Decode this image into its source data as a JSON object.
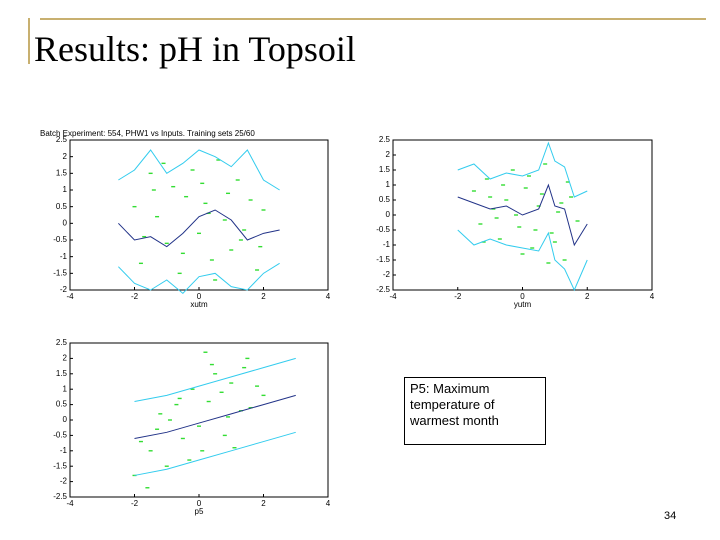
{
  "slide": {
    "title": "Results: pH in Topsoil",
    "note": "P5: Maximum temperature of warmest month",
    "page": "34"
  },
  "chart_data": [
    {
      "type": "scatter",
      "title": "Batch Experiment: 554, PHW1 vs Inputs. Training sets 25/60",
      "xlabel": "xutm",
      "xlim": [
        -4,
        4
      ],
      "xticks": [
        -4,
        -2,
        0,
        2,
        4
      ],
      "ylim": [
        -2,
        2.5
      ],
      "yticks": [
        -2,
        -1.5,
        -1,
        -0.5,
        0,
        0.5,
        1,
        1.5,
        2,
        2.5
      ],
      "series": [
        {
          "mode": "points",
          "color": "#33dd33",
          "x": [
            -2.0,
            -1.8,
            -1.5,
            -1.3,
            -1.0,
            -0.8,
            -0.6,
            -0.4,
            -0.2,
            0,
            0.2,
            0.4,
            0.6,
            0.8,
            1.0,
            1.2,
            1.4,
            1.6,
            1.8,
            2.0,
            -1.7,
            -1.1,
            -0.5,
            0.1,
            0.5,
            0.9,
            1.3,
            1.9,
            -1.4,
            0.3
          ],
          "values": [
            0.5,
            -1.2,
            1.5,
            0.2,
            -0.6,
            1.1,
            -1.5,
            0.8,
            1.6,
            -0.3,
            0.6,
            -1.1,
            1.9,
            0.1,
            -0.8,
            1.3,
            -0.2,
            0.7,
            -1.4,
            0.4,
            -0.4,
            1.8,
            -0.9,
            1.2,
            -1.7,
            0.9,
            -0.5,
            -0.7,
            1.0,
            0.3
          ]
        },
        {
          "mode": "line",
          "color": "#33ccee",
          "x": [
            -2.5,
            -2,
            -1.5,
            -1,
            -0.5,
            0,
            0.5,
            1,
            1.5,
            2,
            2.5
          ],
          "values": [
            1.3,
            1.6,
            2.2,
            1.5,
            1.8,
            2.2,
            2.0,
            1.7,
            2.2,
            1.3,
            1.0
          ]
        },
        {
          "mode": "line",
          "color": "#33ccee",
          "x": [
            -2.5,
            -2,
            -1.5,
            -1,
            -0.5,
            0,
            0.5,
            1,
            1.5,
            2,
            2.5
          ],
          "values": [
            -1.3,
            -1.8,
            -2,
            -1.7,
            -2.1,
            -1.6,
            -1.5,
            -1.9,
            -2.0,
            -1.5,
            -1.2
          ]
        },
        {
          "mode": "line",
          "color": "#223388",
          "x": [
            -2.5,
            -2,
            -1.5,
            -1,
            -0.5,
            0,
            0.5,
            1,
            1.5,
            2,
            2.5
          ],
          "values": [
            0,
            -0.5,
            -0.4,
            -0.7,
            -0.3,
            0.2,
            0.4,
            0.1,
            -0.5,
            -0.3,
            -0.2
          ]
        }
      ]
    },
    {
      "type": "scatter",
      "xlabel": "yutm",
      "xlim": [
        -4,
        4
      ],
      "xticks": [
        -4,
        -2,
        0,
        2,
        4
      ],
      "ylim": [
        -2.5,
        2.5
      ],
      "yticks": [
        -2.5,
        -2,
        -1.5,
        -1,
        -0.5,
        0,
        0.5,
        1,
        1.5,
        2,
        2.5
      ],
      "series": [
        {
          "mode": "points",
          "color": "#33dd33",
          "x": [
            -1.5,
            -1.3,
            -1.1,
            -0.9,
            -0.7,
            -0.5,
            -0.3,
            -0.1,
            0.1,
            0.3,
            0.5,
            0.7,
            0.9,
            1.1,
            1.3,
            1.5,
            1.7,
            -1.2,
            -0.6,
            0,
            0.6,
            1.0,
            1.4,
            -0.8,
            0.2,
            0.8,
            1.2,
            -0.2,
            0.4,
            -1.0
          ],
          "values": [
            0.8,
            -0.3,
            1.2,
            0.2,
            -0.8,
            0.5,
            1.5,
            -0.4,
            0.9,
            -1.1,
            0.3,
            1.7,
            -0.6,
            0.1,
            -1.5,
            0.6,
            -0.2,
            -0.9,
            1.0,
            -1.3,
            0.7,
            -0.9,
            1.1,
            -0.1,
            1.3,
            -1.6,
            0.4,
            0.0,
            -0.5,
            0.6
          ]
        },
        {
          "mode": "line",
          "color": "#33ccee",
          "x": [
            -2,
            -1.5,
            -1,
            -0.5,
            0,
            0.5,
            0.8,
            1,
            1.3,
            1.6,
            2
          ],
          "values": [
            1.5,
            1.7,
            1.2,
            1.4,
            1.3,
            1.5,
            2.4,
            1.8,
            1.6,
            0.6,
            0.8
          ]
        },
        {
          "mode": "line",
          "color": "#33ccee",
          "x": [
            -2,
            -1.5,
            -1,
            -0.5,
            0,
            0.5,
            0.8,
            1,
            1.3,
            1.6,
            2
          ],
          "values": [
            -0.5,
            -1.0,
            -0.8,
            -1.0,
            -1.1,
            -1.2,
            -0.6,
            -1.5,
            -1.8,
            -2.5,
            -1.5
          ]
        },
        {
          "mode": "line",
          "color": "#223388",
          "x": [
            -2,
            -1.5,
            -1,
            -0.5,
            0,
            0.5,
            0.8,
            1,
            1.3,
            1.6,
            2
          ],
          "values": [
            0.6,
            0.4,
            0.2,
            0.3,
            0,
            0.2,
            1.0,
            0.3,
            0.2,
            -1.0,
            -0.3
          ]
        }
      ]
    },
    {
      "type": "scatter",
      "xlabel": "p5",
      "xlim": [
        -4,
        4
      ],
      "xticks": [
        -4,
        -2,
        0,
        2,
        4
      ],
      "ylim": [
        -2.5,
        2.5
      ],
      "yticks": [
        -2.5,
        -2,
        -1.5,
        -1,
        -0.5,
        0,
        0.5,
        1,
        1.5,
        2,
        2.5
      ],
      "series": [
        {
          "mode": "points",
          "color": "#33dd33",
          "x": [
            -2,
            -1.8,
            -1.5,
            -1.2,
            -1,
            -0.7,
            -0.5,
            -0.2,
            0,
            0.3,
            0.5,
            0.8,
            1,
            1.3,
            1.5,
            1.8,
            2,
            -1.6,
            -0.9,
            -0.3,
            0.4,
            1.1,
            1.6,
            -1.3,
            0.1,
            0.7,
            1.4,
            -0.6,
            0.9,
            0.2
          ],
          "values": [
            -1.8,
            -0.7,
            -1.0,
            0.2,
            -1.5,
            0.5,
            -0.6,
            1.0,
            -0.2,
            0.6,
            1.5,
            -0.5,
            1.2,
            0.3,
            2.0,
            1.1,
            0.8,
            -2.2,
            0.0,
            -1.3,
            1.8,
            -0.9,
            0.4,
            -0.3,
            -1.0,
            0.9,
            1.7,
            0.7,
            0.1,
            2.2
          ]
        },
        {
          "mode": "line",
          "color": "#33ccee",
          "x": [
            -2,
            -1,
            0,
            1,
            2,
            3
          ],
          "values": [
            0.6,
            0.8,
            1.1,
            1.4,
            1.7,
            2.0
          ]
        },
        {
          "mode": "line",
          "color": "#33ccee",
          "x": [
            -2,
            -1,
            0,
            1,
            2,
            3
          ],
          "values": [
            -1.8,
            -1.6,
            -1.3,
            -1.0,
            -0.7,
            -0.4
          ]
        },
        {
          "mode": "line",
          "color": "#223388",
          "x": [
            -2,
            -1,
            0,
            1,
            2,
            3
          ],
          "values": [
            -0.6,
            -0.4,
            -0.1,
            0.2,
            0.5,
            0.8
          ]
        }
      ]
    }
  ]
}
